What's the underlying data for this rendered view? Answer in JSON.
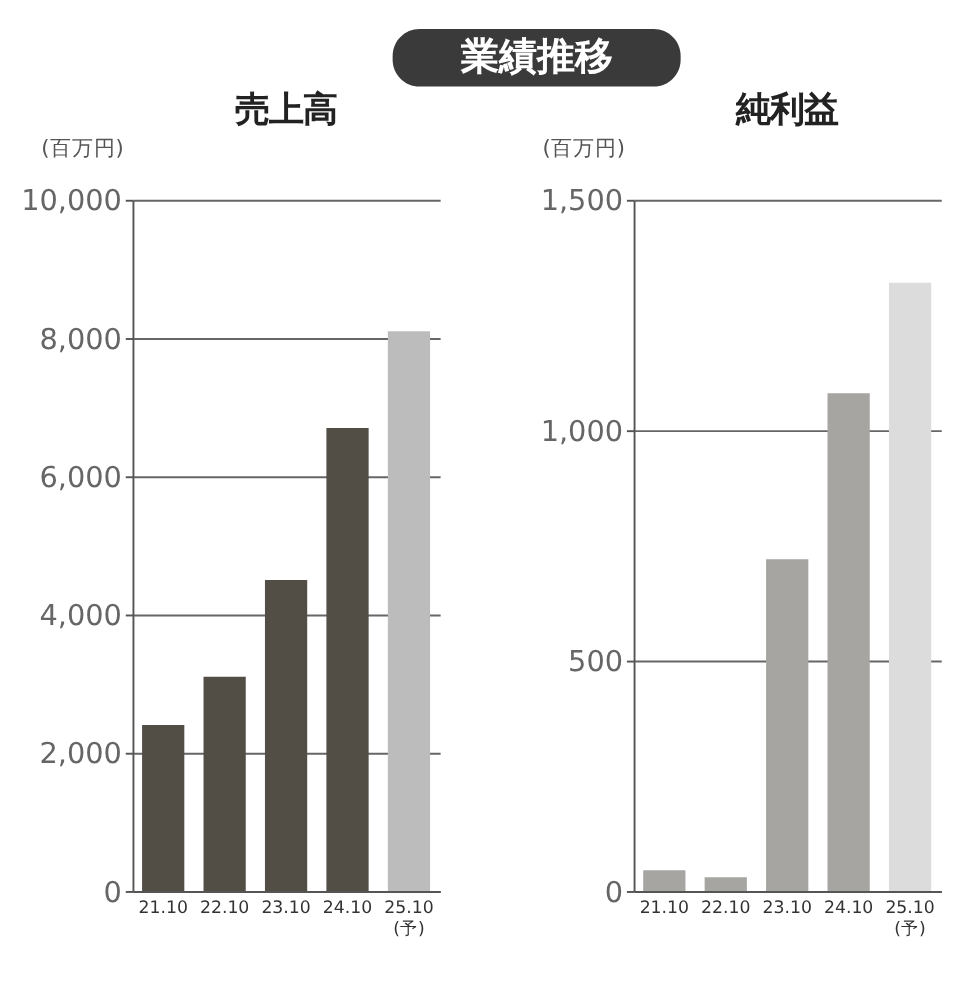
{
  "chart_data": [
    {
      "type": "bar",
      "title": "売上高",
      "ylabel": "(百万円)",
      "annotations": [
        "業績推移"
      ],
      "categories": [
        "21.10",
        "22.10",
        "23.10",
        "24.10",
        "25.10\n(予)"
      ],
      "values": [
        2400,
        3100,
        4500,
        6700,
        8100
      ],
      "colors": [
        "#524e46",
        "#524e46",
        "#524e46",
        "#524e46",
        "#bcbcbc"
      ],
      "ylim": [
        0,
        10000
      ],
      "yticks": [
        0,
        {
          "value": 2000,
          "label": "2,000"
        },
        {
          "value": 4000,
          "label": "4,000"
        },
        {
          "value": 6000,
          "label": "6,000"
        },
        {
          "value": 8000,
          "label": "8,000"
        },
        {
          "value": 10000,
          "label": "10,000"
        }
      ],
      "grid": "y"
    },
    {
      "type": "bar",
      "title": "純利益",
      "ylabel": "(百万円)",
      "categories": [
        "21.10",
        "22.10",
        "23.10",
        "24.10",
        "25.10\n(予)"
      ],
      "values": [
        45,
        30,
        720,
        1080,
        1320
      ],
      "colors": [
        "#a6a5a2",
        "#a6a5a2",
        "#a6a5a2",
        "#a6a5a2",
        "#dcdcdc"
      ],
      "ylim": [
        0,
        1500
      ],
      "yticks": [
        0,
        500,
        {
          "value": 1000,
          "label": "1,000"
        },
        {
          "value": 1500,
          "label": "1,500"
        }
      ],
      "grid": "y"
    }
  ]
}
